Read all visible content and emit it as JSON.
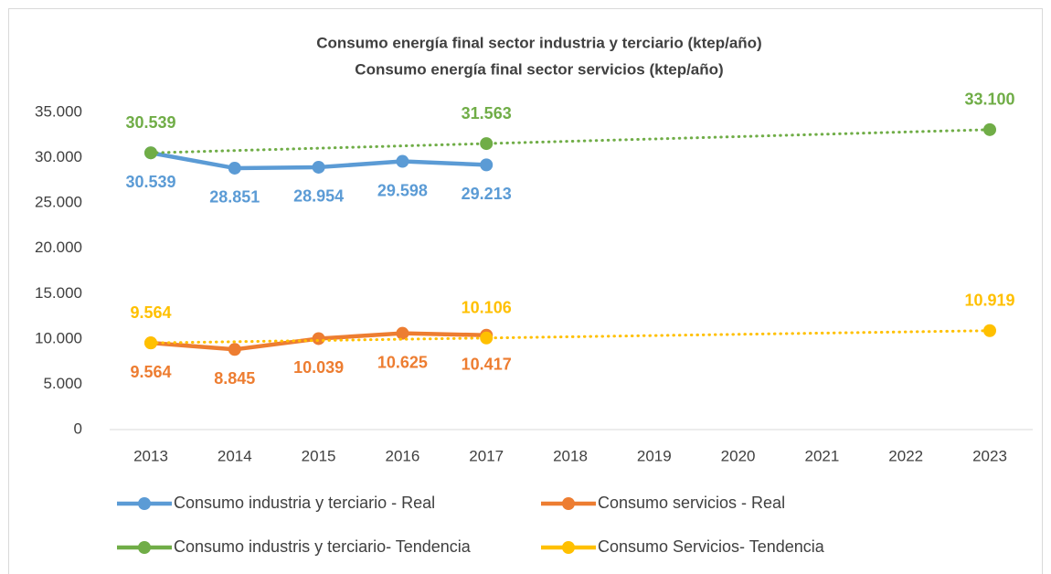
{
  "chart_data": {
    "type": "line",
    "title": "Consumo energía final sector industria y terciario (ktep/año)",
    "subtitle": "Consumo energía final sector servicios (ktep/año)",
    "categories": [
      "2013",
      "2014",
      "2015",
      "2016",
      "2017",
      "2018",
      "2019",
      "2020",
      "2021",
      "2022",
      "2023"
    ],
    "ylim": [
      0,
      35000
    ],
    "yticks": [
      0,
      {
        "value": 5000,
        "label": "5.000"
      },
      {
        "value": 10000,
        "label": "10.000"
      },
      {
        "value": 15000,
        "label": "15.000"
      },
      {
        "value": 20000,
        "label": "20.000"
      },
      {
        "value": 25000,
        "label": "25.000"
      },
      {
        "value": 30000,
        "label": "30.000"
      },
      {
        "value": 35000,
        "label": "35.000"
      }
    ],
    "grid": false,
    "legend": "bottom",
    "series": [
      {
        "name": "Consumo industria y terciario - Real",
        "color": "#5b9bd5",
        "style": "solid",
        "connect_gaps": false,
        "label_position": "below",
        "values": [
          30539,
          28851,
          28954,
          29598,
          29213,
          null,
          null,
          null,
          null,
          null,
          null
        ],
        "value_labels": [
          "30.539",
          "28.851",
          "28.954",
          "29.598",
          "29.213",
          null,
          null,
          null,
          null,
          null,
          null
        ]
      },
      {
        "name": "Consumo servicios - Real",
        "color": "#ed7d31",
        "style": "solid",
        "connect_gaps": false,
        "label_position": "below",
        "values": [
          9564,
          8845,
          10039,
          10625,
          10417,
          null,
          null,
          null,
          null,
          null,
          null
        ],
        "value_labels": [
          "9.564",
          "8.845",
          "10.039",
          "10.625",
          "10.417",
          null,
          null,
          null,
          null,
          null,
          null
        ]
      },
      {
        "name": "Consumo industris y terciario- Tendencia",
        "color": "#70ad47",
        "style": "dotted",
        "connect_gaps": true,
        "label_position": "above",
        "values": [
          30539,
          null,
          null,
          null,
          31563,
          null,
          null,
          null,
          null,
          null,
          33100
        ],
        "value_labels": [
          "30.539",
          null,
          null,
          null,
          "31.563",
          null,
          null,
          null,
          null,
          null,
          "33.100"
        ]
      },
      {
        "name": "Consumo Servicios- Tendencia",
        "color": "#ffc000",
        "style": "dotted",
        "connect_gaps": true,
        "label_position": "above",
        "values": [
          9564,
          null,
          null,
          null,
          10106,
          null,
          null,
          null,
          null,
          null,
          10919
        ],
        "value_labels": [
          "9.564",
          null,
          null,
          null,
          "10.106",
          null,
          null,
          null,
          null,
          null,
          "10.919"
        ]
      }
    ]
  }
}
